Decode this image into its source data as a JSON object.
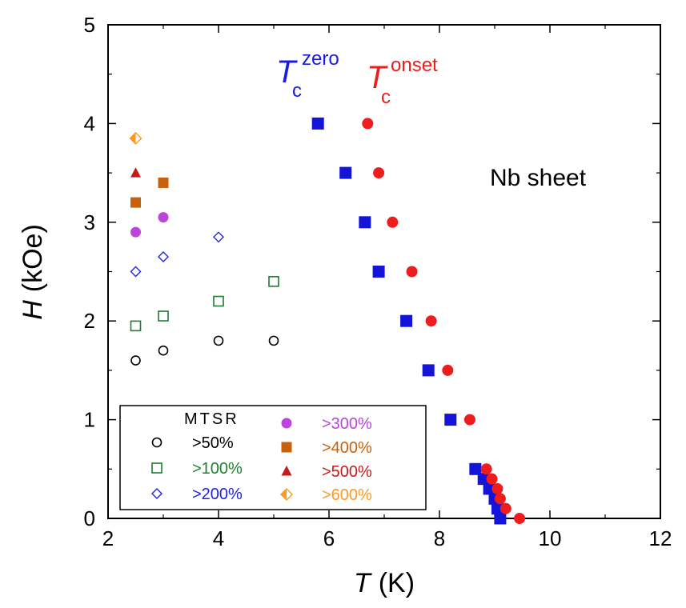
{
  "chart_data": {
    "type": "scatter",
    "xlabel": {
      "symbol": "T",
      "unit": "(K)"
    },
    "ylabel": {
      "symbol": "H",
      "unit": "(kOe)"
    },
    "xlim": [
      2,
      12
    ],
    "ylim": [
      0,
      5
    ],
    "xticks": [
      "2",
      "4",
      "6",
      "8",
      "10",
      "12"
    ],
    "yticks": [
      "0",
      "1",
      "2",
      "3",
      "4",
      "5"
    ],
    "grid": false,
    "annotations": {
      "sample": "Nb sheet",
      "tc_zero": {
        "base": "T",
        "sub": "c",
        "sup": "zero",
        "color": "#1a1ae6"
      },
      "tc_onset": {
        "base": "T",
        "sub": "c",
        "sup": "onset",
        "color": "#ee1c1c"
      }
    },
    "legend": {
      "title": "MTSR",
      "placement": "bottom-left"
    },
    "series": [
      {
        "name": ">50%",
        "marker": "circle-open",
        "color": "#000000",
        "points": [
          [
            2.5,
            1.6
          ],
          [
            3.0,
            1.7
          ],
          [
            4.0,
            1.8
          ],
          [
            5.0,
            1.8
          ]
        ]
      },
      {
        "name": ">100%",
        "marker": "square-open",
        "color": "#1e7d32",
        "points": [
          [
            2.5,
            1.95
          ],
          [
            3.0,
            2.05
          ],
          [
            4.0,
            2.2
          ],
          [
            5.0,
            2.4
          ]
        ]
      },
      {
        "name": ">200%",
        "marker": "diamond-open",
        "color": "#2222dd",
        "points": [
          [
            2.5,
            2.5
          ],
          [
            3.0,
            2.65
          ],
          [
            4.0,
            2.85
          ]
        ]
      },
      {
        "name": ">300%",
        "marker": "circle-filled",
        "color": "#bb44dd",
        "points": [
          [
            2.5,
            2.9
          ],
          [
            3.0,
            3.05
          ]
        ]
      },
      {
        "name": ">400%",
        "marker": "square-filled",
        "color": "#c8600c",
        "points": [
          [
            2.5,
            3.2
          ],
          [
            3.0,
            3.4
          ]
        ]
      },
      {
        "name": ">500%",
        "marker": "triangle-filled",
        "color": "#c41c1c",
        "points": [
          [
            2.5,
            3.5
          ]
        ]
      },
      {
        "name": ">600%",
        "marker": "diamond-half",
        "color": "#ff9922",
        "points": [
          [
            2.5,
            3.85
          ]
        ]
      },
      {
        "marker": "square-filled-large",
        "color": "#1414d8",
        "points": [
          [
            5.8,
            4.0
          ],
          [
            6.3,
            3.5
          ],
          [
            6.65,
            3.0
          ],
          [
            6.9,
            2.5
          ],
          [
            7.4,
            2.0
          ],
          [
            7.8,
            1.5
          ],
          [
            8.2,
            1.0
          ],
          [
            8.65,
            0.5
          ],
          [
            8.8,
            0.4
          ],
          [
            8.9,
            0.3
          ],
          [
            9.0,
            0.2
          ],
          [
            9.05,
            0.1
          ],
          [
            9.1,
            0.0
          ]
        ]
      },
      {
        "marker": "circle-filled-large",
        "color": "#ee1c1c",
        "points": [
          [
            6.7,
            4.0
          ],
          [
            6.9,
            3.5
          ],
          [
            7.15,
            3.0
          ],
          [
            7.5,
            2.5
          ],
          [
            7.85,
            2.0
          ],
          [
            8.15,
            1.5
          ],
          [
            8.55,
            1.0
          ],
          [
            8.85,
            0.5
          ],
          [
            8.95,
            0.4
          ],
          [
            9.05,
            0.3
          ],
          [
            9.1,
            0.2
          ],
          [
            9.2,
            0.1
          ],
          [
            9.45,
            0.0
          ]
        ]
      }
    ]
  }
}
